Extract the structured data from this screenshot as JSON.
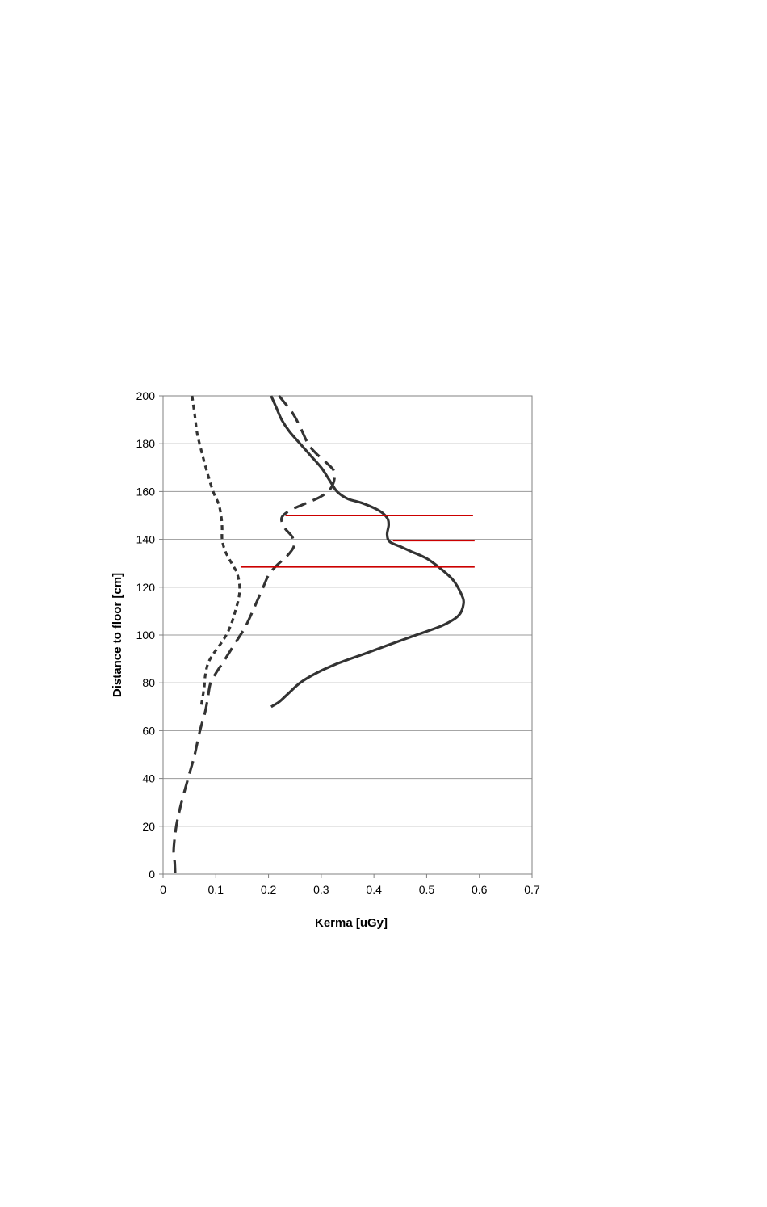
{
  "chart_data": {
    "type": "line",
    "title": "",
    "xlabel": "Kerma [uGy]",
    "ylabel": "Distance to floor [cm]",
    "xlim": [
      0,
      0.7
    ],
    "ylim": [
      0,
      200
    ],
    "x_ticks": [
      "0",
      "0.1",
      "0.2",
      "0.3",
      "0.4",
      "0.5",
      "0.6",
      "0.7"
    ],
    "y_ticks": [
      "0",
      "20",
      "40",
      "60",
      "80",
      "100",
      "120",
      "140",
      "160",
      "180",
      "200"
    ],
    "grid": "horizontal",
    "legend": "none",
    "series": [
      {
        "style": "solid",
        "color": "#333333",
        "points": [
          [
            0.205,
            200
          ],
          [
            0.215,
            195
          ],
          [
            0.225,
            190
          ],
          [
            0.24,
            185
          ],
          [
            0.26,
            180
          ],
          [
            0.28,
            175
          ],
          [
            0.3,
            170
          ],
          [
            0.315,
            165
          ],
          [
            0.33,
            160
          ],
          [
            0.35,
            157
          ],
          [
            0.38,
            155
          ],
          [
            0.41,
            152
          ],
          [
            0.425,
            149
          ],
          [
            0.428,
            146
          ],
          [
            0.425,
            142
          ],
          [
            0.43,
            139
          ],
          [
            0.45,
            137
          ],
          [
            0.47,
            135
          ],
          [
            0.5,
            132
          ],
          [
            0.525,
            128
          ],
          [
            0.55,
            123
          ],
          [
            0.566,
            117
          ],
          [
            0.57,
            113
          ],
          [
            0.56,
            108
          ],
          [
            0.53,
            104
          ],
          [
            0.48,
            100
          ],
          [
            0.43,
            96
          ],
          [
            0.38,
            92
          ],
          [
            0.33,
            88
          ],
          [
            0.29,
            84
          ],
          [
            0.26,
            80
          ],
          [
            0.235,
            75
          ],
          [
            0.22,
            72
          ],
          [
            0.205,
            70
          ]
        ]
      },
      {
        "style": "dashed",
        "color": "#333333",
        "points": [
          [
            0.22,
            200
          ],
          [
            0.245,
            193
          ],
          [
            0.26,
            187
          ],
          [
            0.275,
            180
          ],
          [
            0.29,
            176
          ],
          [
            0.31,
            172
          ],
          [
            0.325,
            168
          ],
          [
            0.32,
            162
          ],
          [
            0.3,
            158
          ],
          [
            0.27,
            155
          ],
          [
            0.24,
            152
          ],
          [
            0.225,
            149
          ],
          [
            0.23,
            145
          ],
          [
            0.245,
            141
          ],
          [
            0.248,
            137
          ],
          [
            0.235,
            133
          ],
          [
            0.215,
            129
          ],
          [
            0.2,
            125
          ],
          [
            0.19,
            120
          ],
          [
            0.18,
            115
          ],
          [
            0.17,
            110
          ],
          [
            0.155,
            103
          ],
          [
            0.135,
            96
          ],
          [
            0.115,
            89
          ],
          [
            0.1,
            84
          ],
          [
            0.09,
            80
          ],
          [
            0.085,
            74
          ],
          [
            0.08,
            68
          ],
          [
            0.07,
            60
          ],
          [
            0.06,
            50
          ],
          [
            0.05,
            42
          ],
          [
            0.035,
            30
          ],
          [
            0.025,
            20
          ],
          [
            0.02,
            10
          ],
          [
            0.022,
            5
          ],
          [
            0.023,
            0
          ]
        ]
      },
      {
        "style": "dotted",
        "color": "#333333",
        "points": [
          [
            0.055,
            200
          ],
          [
            0.06,
            192
          ],
          [
            0.065,
            184
          ],
          [
            0.075,
            175
          ],
          [
            0.085,
            167
          ],
          [
            0.095,
            160
          ],
          [
            0.105,
            155
          ],
          [
            0.11,
            150
          ],
          [
            0.112,
            145
          ],
          [
            0.112,
            140
          ],
          [
            0.118,
            135
          ],
          [
            0.13,
            130
          ],
          [
            0.14,
            126
          ],
          [
            0.145,
            121
          ],
          [
            0.144,
            116
          ],
          [
            0.137,
            110
          ],
          [
            0.13,
            105
          ],
          [
            0.12,
            100
          ],
          [
            0.105,
            95
          ],
          [
            0.095,
            92
          ],
          [
            0.085,
            88
          ],
          [
            0.08,
            83
          ],
          [
            0.078,
            78
          ],
          [
            0.075,
            74
          ],
          [
            0.072,
            70
          ]
        ]
      }
    ],
    "markers": [
      {
        "color": "#cc0000",
        "y": 150,
        "x_start": 0.232,
        "x_end": 0.588
      },
      {
        "color": "#cc0000",
        "y": 139.5,
        "x_start": 0.436,
        "x_end": 0.591
      },
      {
        "color": "#cc0000",
        "y": 128.5,
        "x_start": 0.147,
        "x_end": 0.591
      }
    ]
  }
}
